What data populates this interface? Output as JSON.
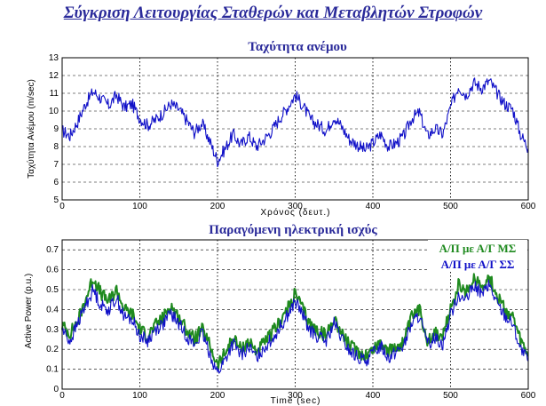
{
  "page": {
    "title": "Σύγκριση Λειτουργίας Σταθερών και Μεταβλητών Στροφών"
  },
  "colors": {
    "title": "#2a2a9a",
    "variable_speed": "#1f8a1f",
    "fixed_speed": "#1010c8",
    "grid": "#000000"
  },
  "chart_data": [
    {
      "type": "line",
      "title": "Ταχύτητα ανέμου",
      "xlabel": "Χρόνος (δευτ.)",
      "ylabel": "Ταχύτητα Ανέμου (m/sec)",
      "xlim": [
        0,
        600
      ],
      "ylim": [
        5,
        13
      ],
      "xticks": [
        0,
        100,
        200,
        300,
        400,
        500,
        600
      ],
      "yticks": [
        5,
        6,
        7,
        8,
        9,
        10,
        11,
        12,
        13
      ],
      "grid": "dashed, x lines dotted",
      "series": [
        {
          "color": "#1010c8",
          "x": [
            0,
            10,
            20,
            30,
            40,
            50,
            60,
            70,
            80,
            90,
            100,
            110,
            120,
            130,
            140,
            150,
            160,
            170,
            180,
            190,
            200,
            210,
            220,
            230,
            240,
            250,
            260,
            270,
            280,
            290,
            300,
            310,
            320,
            330,
            340,
            350,
            360,
            370,
            380,
            390,
            400,
            410,
            420,
            430,
            440,
            450,
            460,
            470,
            480,
            490,
            500,
            510,
            520,
            530,
            540,
            550,
            560,
            570,
            580,
            590,
            600
          ],
          "y": [
            8.9,
            8.6,
            9.4,
            10.4,
            11.1,
            10.7,
            10.3,
            10.9,
            10.2,
            10.4,
            9.6,
            9.2,
            9.5,
            9.9,
            10.4,
            10.1,
            9.5,
            8.8,
            9.3,
            8.3,
            7.2,
            7.9,
            8.7,
            8.1,
            8.6,
            8.0,
            8.4,
            8.9,
            9.6,
            10.2,
            10.9,
            10.3,
            9.5,
            9.2,
            8.9,
            9.7,
            9.1,
            8.4,
            8.1,
            7.8,
            8.2,
            8.7,
            8.0,
            8.2,
            8.6,
            9.6,
            9.9,
            8.6,
            9.0,
            8.7,
            10.2,
            11.4,
            10.9,
            11.6,
            11.3,
            11.7,
            11.0,
            10.4,
            10.1,
            8.7,
            7.9
          ]
        }
      ]
    },
    {
      "type": "line",
      "title": "Παραγόμενη ηλεκτρική ισχύς",
      "xlabel": "Time (sec)",
      "ylabel": "Active Power (p.u.)",
      "xlim": [
        0,
        600
      ],
      "ylim": [
        0,
        0.75
      ],
      "xticks": [
        0,
        100,
        200,
        300,
        400,
        500,
        600
      ],
      "yticks": [
        0,
        0.1,
        0.2,
        0.3,
        0.4,
        0.5,
        0.6,
        0.7
      ],
      "grid": "dashed, x lines dotted",
      "legend_position": "top-right",
      "series": [
        {
          "name": "Α/Π με Α/Γ ΜΣ",
          "color": "#1f8a1f",
          "x": [
            0,
            10,
            20,
            30,
            40,
            50,
            60,
            70,
            80,
            90,
            100,
            110,
            120,
            130,
            140,
            150,
            160,
            170,
            180,
            190,
            200,
            210,
            220,
            230,
            240,
            250,
            260,
            270,
            280,
            290,
            300,
            310,
            320,
            330,
            340,
            350,
            360,
            370,
            380,
            390,
            400,
            410,
            420,
            430,
            440,
            450,
            460,
            470,
            480,
            490,
            500,
            510,
            520,
            530,
            540,
            550,
            560,
            570,
            580,
            590,
            600
          ],
          "y": [
            0.32,
            0.28,
            0.34,
            0.45,
            0.56,
            0.48,
            0.44,
            0.5,
            0.4,
            0.38,
            0.3,
            0.27,
            0.32,
            0.36,
            0.42,
            0.36,
            0.3,
            0.25,
            0.3,
            0.22,
            0.12,
            0.18,
            0.26,
            0.2,
            0.24,
            0.19,
            0.23,
            0.28,
            0.34,
            0.4,
            0.48,
            0.4,
            0.32,
            0.29,
            0.27,
            0.36,
            0.28,
            0.22,
            0.19,
            0.17,
            0.2,
            0.24,
            0.19,
            0.21,
            0.24,
            0.36,
            0.4,
            0.25,
            0.28,
            0.26,
            0.4,
            0.52,
            0.48,
            0.56,
            0.52,
            0.56,
            0.47,
            0.4,
            0.36,
            0.24,
            0.17
          ]
        },
        {
          "name": "Α/Π με Α/Γ ΣΣ",
          "color": "#1010c8",
          "x": [
            0,
            10,
            20,
            30,
            40,
            50,
            60,
            70,
            80,
            90,
            100,
            110,
            120,
            130,
            140,
            150,
            160,
            170,
            180,
            190,
            200,
            210,
            220,
            230,
            240,
            250,
            260,
            270,
            280,
            290,
            300,
            310,
            320,
            330,
            340,
            350,
            360,
            370,
            380,
            390,
            400,
            410,
            420,
            430,
            440,
            450,
            460,
            470,
            480,
            490,
            500,
            510,
            520,
            530,
            540,
            550,
            560,
            570,
            580,
            590,
            600
          ],
          "y": [
            0.3,
            0.24,
            0.33,
            0.42,
            0.5,
            0.42,
            0.4,
            0.46,
            0.36,
            0.35,
            0.27,
            0.24,
            0.3,
            0.33,
            0.38,
            0.33,
            0.27,
            0.22,
            0.28,
            0.18,
            0.08,
            0.15,
            0.23,
            0.17,
            0.21,
            0.16,
            0.21,
            0.25,
            0.31,
            0.37,
            0.44,
            0.37,
            0.29,
            0.26,
            0.24,
            0.33,
            0.25,
            0.19,
            0.16,
            0.14,
            0.18,
            0.22,
            0.16,
            0.19,
            0.22,
            0.33,
            0.37,
            0.22,
            0.26,
            0.23,
            0.37,
            0.48,
            0.44,
            0.52,
            0.48,
            0.52,
            0.43,
            0.37,
            0.33,
            0.2,
            0.14
          ]
        }
      ]
    }
  ]
}
